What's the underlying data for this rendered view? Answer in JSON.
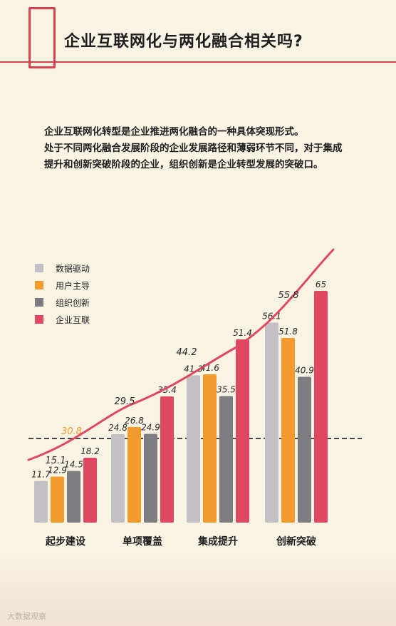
{
  "header": {
    "title": "企业互联网化与两化融合相关吗?"
  },
  "intro": {
    "paragraph1": "企业互联网化转型是企业推进两化融合的一种具体突现形式。",
    "paragraph2": "处于不同两化融合发展阶段的企业发展路径和薄弱环节不同，对于集成提升和创新突破阶段的企业，组织创新是企业转型发展的突破口。"
  },
  "watermark": "大数据观察",
  "colors": {
    "accent": "#d8434f",
    "background": "#f8f3e3"
  },
  "chart_data": {
    "type": "bar",
    "categories": [
      "起步建设",
      "单项覆盖",
      "集成提升",
      "创新突破"
    ],
    "ylim": [
      0,
      70
    ],
    "series": [
      {
        "name": "数据驱动",
        "color": "#c2c0c2",
        "values": [
          11.7,
          24.8,
          41.3,
          56.1
        ]
      },
      {
        "name": "用户主导",
        "color": "#f39a2c",
        "values": [
          12.9,
          26.8,
          41.6,
          51.8
        ]
      },
      {
        "name": "组织创新",
        "color": "#7d7c80",
        "values": [
          14.5,
          24.9,
          35.5,
          40.9
        ]
      },
      {
        "name": "企业互联",
        "color": "#e04761",
        "values": [
          18.2,
          35.4,
          51.4,
          65.0
        ]
      }
    ],
    "line": {
      "color": "#e04761",
      "labels": [
        "15.1",
        "29.5",
        "44.2",
        "55.8"
      ]
    },
    "reference": {
      "value": 30.8,
      "label": "30.8",
      "color": "#f39a2c"
    }
  }
}
